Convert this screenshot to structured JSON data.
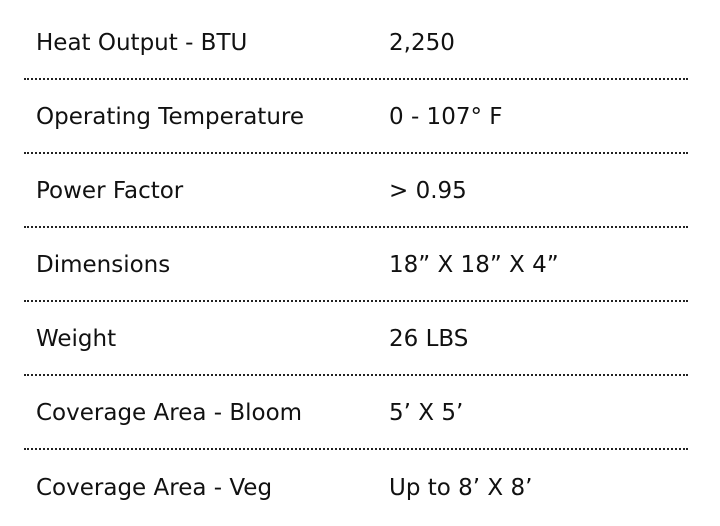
{
  "specs": [
    {
      "label": "Heat Output - BTU",
      "value": "2,250"
    },
    {
      "label": "Operating Temperature",
      "value": "0 - 107° F"
    },
    {
      "label": "Power Factor",
      "value": "> 0.95"
    },
    {
      "label": "Dimensions",
      "value": "18” X 18” X 4”"
    },
    {
      "label": "Weight",
      "value": "26 LBS"
    },
    {
      "label": "Coverage Area - Bloom",
      "value": "5’ X 5’"
    },
    {
      "label": "Coverage Area - Veg",
      "value": "Up to 8’ X 8’"
    }
  ]
}
